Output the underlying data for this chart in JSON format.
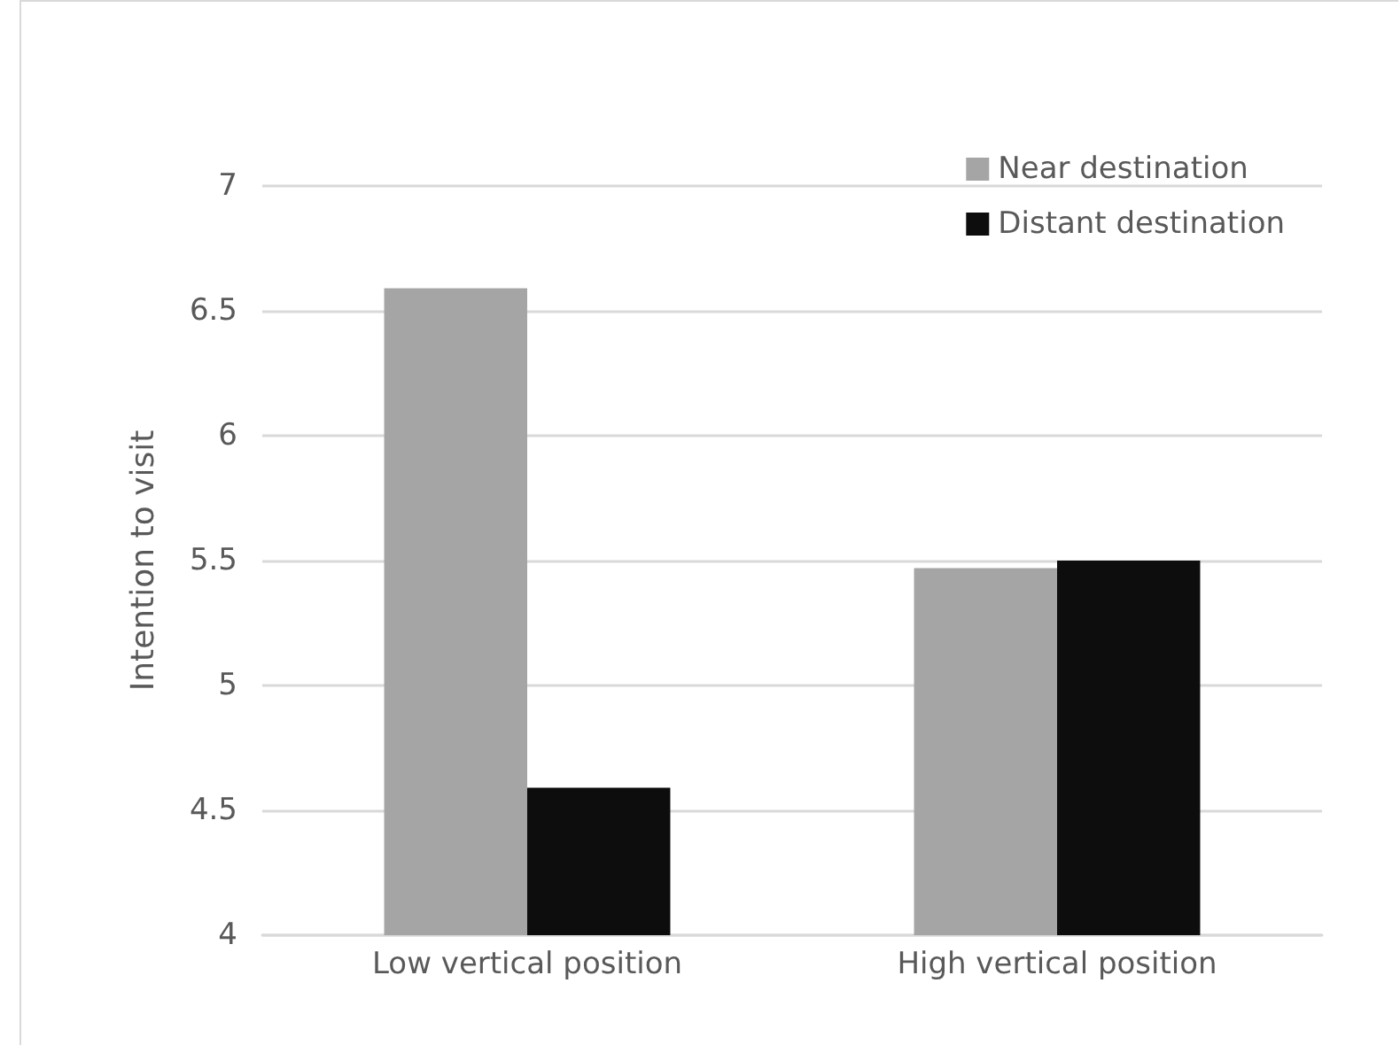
{
  "chart_data": {
    "type": "bar",
    "ylabel": "Intention to visit",
    "categories": [
      "Low vertical position",
      "High vertical position"
    ],
    "series": [
      {
        "name": "Near destination",
        "color": "#a5a5a5",
        "values": [
          6.59,
          5.47
        ]
      },
      {
        "name": "Distant destination",
        "color": "#0d0d0d",
        "values": [
          4.59,
          5.5
        ]
      }
    ],
    "ylim": [
      4,
      7
    ],
    "yticks": [
      4,
      4.5,
      5,
      5.5,
      6,
      6.5,
      7
    ],
    "grid": "y",
    "legend": "top right"
  }
}
